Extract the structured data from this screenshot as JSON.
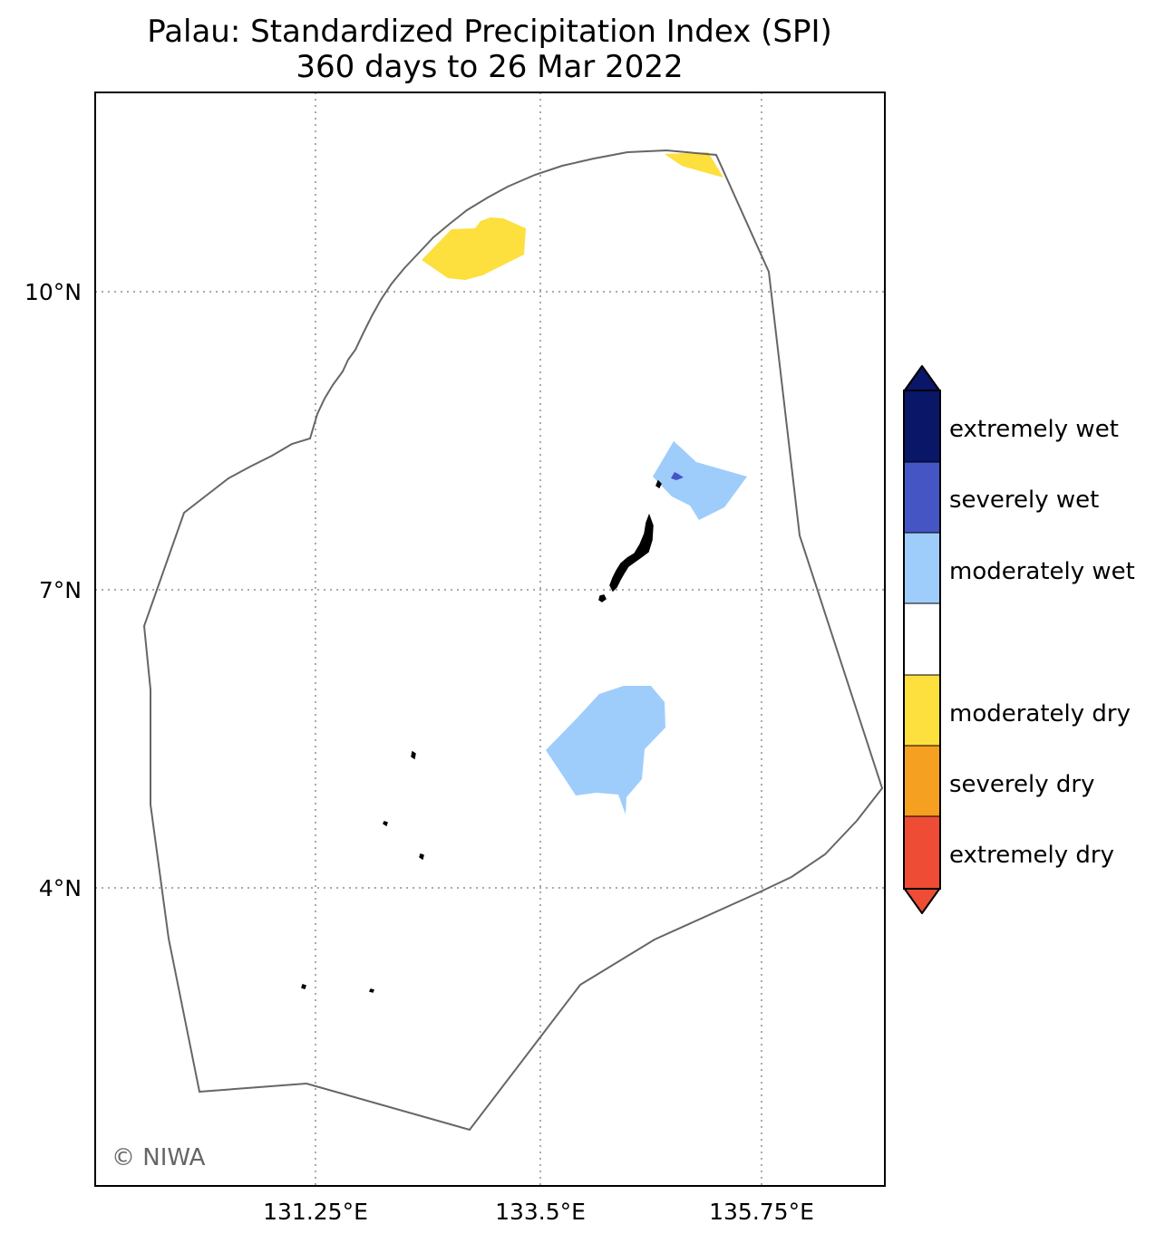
{
  "title": {
    "line1": "Palau: Standardized Precipitation Index (SPI)",
    "line2": "360 days to 26 Mar 2022"
  },
  "map": {
    "latitude_labels": [
      "10°N",
      "7°N",
      "4°N"
    ],
    "longitude_labels": [
      "131.25°E",
      "133.5°E",
      "135.75°E"
    ],
    "grid": "dotted",
    "region_outline": "Palau EEZ boundary",
    "credit": "© NIWA"
  },
  "legend": {
    "placement": "right",
    "extend": "both",
    "categories": [
      {
        "label": "extremely wet",
        "color": "#0a1668"
      },
      {
        "label": "severely wet",
        "color": "#4655c4"
      },
      {
        "label": "moderately wet",
        "color": "#9ecdfc"
      },
      {
        "label": "",
        "color": "#ffffff"
      },
      {
        "label": "moderately dry",
        "color": "#fddf3d"
      },
      {
        "label": "severely dry",
        "color": "#f5a020"
      },
      {
        "label": "extremely dry",
        "color": "#ee4c35"
      }
    ]
  },
  "colors": {
    "frame": "#000000",
    "boundary": "#666666",
    "grid": "#aaaaaa",
    "land": "#000000",
    "credit": "#666666"
  }
}
